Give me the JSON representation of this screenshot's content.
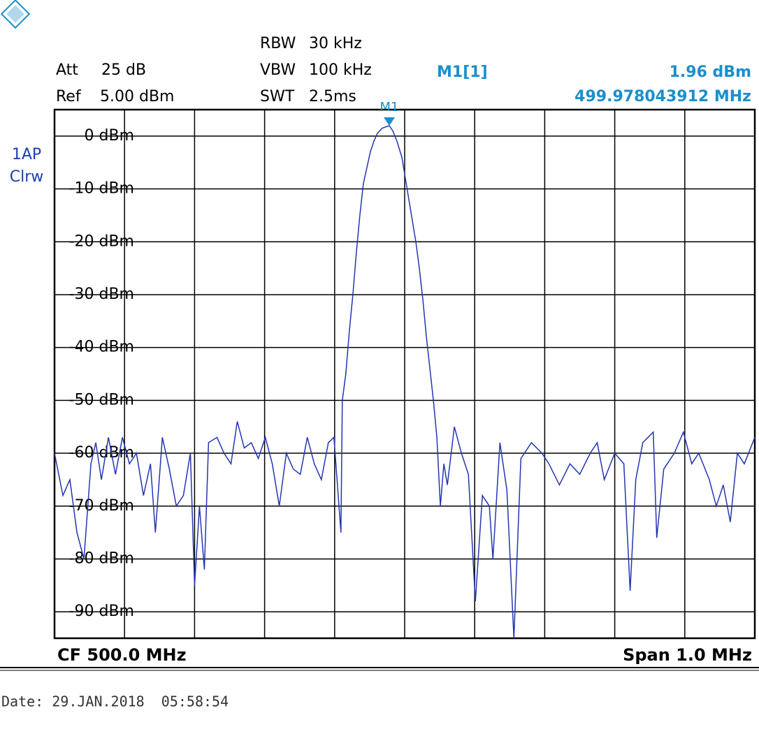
{
  "chart_data": {
    "type": "line",
    "color": "#2436b0",
    "settings": [
      {
        "name": "Att",
        "value": "25 dB"
      },
      {
        "name": "Ref",
        "value": "5.00 dBm"
      },
      {
        "name": "RBW",
        "value": "30 kHz"
      },
      {
        "name": "VBW",
        "value": "100 kHz"
      },
      {
        "name": "SWT",
        "value": "2.5ms"
      }
    ],
    "trace_mode": [
      "1AP",
      "Clrw"
    ],
    "marker": {
      "name": "M1[1]",
      "label": "M1",
      "x": 499.978043912,
      "y": 1.96,
      "y_label": "1.96 dBm",
      "x_label": "499.978043912 MHz"
    },
    "x_start_label": "CF 500.0 MHz",
    "x_end_label": "Span 1.0 MHz",
    "date": "Date: 29.JAN.2018  05:58:54",
    "xlim": [
      499.5,
      500.5
    ],
    "ylim": [
      -95,
      5
    ],
    "yticks": [
      {
        "value": 0,
        "label": "0 dBm"
      },
      {
        "value": -10,
        "label": "-10 dBm"
      },
      {
        "value": -20,
        "label": "-20 dBm"
      },
      {
        "value": -30,
        "label": "-30 dBm"
      },
      {
        "value": -40,
        "label": "-40 dBm"
      },
      {
        "value": -50,
        "label": "-50 dBm"
      },
      {
        "value": -60,
        "label": "-60 dBm"
      },
      {
        "value": -70,
        "label": "-70 dBm"
      },
      {
        "value": -80,
        "label": "-80 dBm"
      },
      {
        "value": -90,
        "label": "-90 dBm"
      }
    ],
    "grid": true,
    "x": [
      499.5,
      499.512,
      499.522,
      499.532,
      499.542,
      499.552,
      499.559,
      499.567,
      499.577,
      499.587,
      499.597,
      499.607,
      499.617,
      499.627,
      499.637,
      499.644,
      499.654,
      499.664,
      499.674,
      499.684,
      499.694,
      499.7,
      499.707,
      499.714,
      499.72,
      499.732,
      499.742,
      499.752,
      499.761,
      499.771,
      499.781,
      499.791,
      499.801,
      499.811,
      499.821,
      499.831,
      499.841,
      499.851,
      499.861,
      499.871,
      499.881,
      499.891,
      499.899,
      499.909,
      499.911,
      499.916,
      499.921,
      499.926,
      499.931,
      499.936,
      499.941,
      499.946,
      499.951,
      499.956,
      499.961,
      499.968,
      499.978,
      499.983,
      499.989,
      499.996,
      500.001,
      500.006,
      500.011,
      500.016,
      500.021,
      500.026,
      500.031,
      500.036,
      500.041,
      500.046,
      500.051,
      500.056,
      500.061,
      500.071,
      500.081,
      500.091,
      500.101,
      500.111,
      500.121,
      500.126,
      500.136,
      500.146,
      500.156,
      500.166,
      500.181,
      500.196,
      500.206,
      500.221,
      500.236,
      500.25,
      500.265,
      500.275,
      500.285,
      500.3,
      500.313,
      500.322,
      500.33,
      500.34,
      500.355,
      500.36,
      500.37,
      500.385,
      500.398,
      500.41,
      500.42,
      500.435,
      500.445,
      500.455,
      500.465,
      500.475,
      500.485,
      500.5
    ],
    "values": [
      -60,
      -68,
      -65,
      -75,
      -80,
      -62,
      -58,
      -65,
      -57,
      -64,
      -57,
      -62,
      -60,
      -68,
      -62,
      -75,
      -57,
      -63,
      -70,
      -68,
      -60,
      -85,
      -70,
      -82,
      -58,
      -57,
      -60,
      -62,
      -54,
      -59,
      -58,
      -61,
      -57,
      -62,
      -70,
      -60,
      -63,
      -64,
      -57,
      -62,
      -65,
      -58,
      -57,
      -75,
      -50,
      -45,
      -37,
      -30,
      -22,
      -15,
      -9,
      -6,
      -3,
      -1,
      0.5,
      1.5,
      1.96,
      1,
      -1,
      -4,
      -8,
      -12,
      -16,
      -20,
      -25,
      -31,
      -38,
      -44,
      -50,
      -57,
      -70,
      -62,
      -66,
      -55,
      -60,
      -64,
      -88,
      -68,
      -70,
      -80,
      -58,
      -67,
      -95,
      -61,
      -58,
      -60,
      -62,
      -66,
      -62,
      -64,
      -60,
      -58,
      -65,
      -60,
      -62,
      -86,
      -65,
      -58,
      -56,
      -76,
      -63,
      -60,
      -56,
      -62,
      -60,
      -65,
      -70,
      -66,
      -73,
      -60,
      -62,
      -57
    ]
  }
}
